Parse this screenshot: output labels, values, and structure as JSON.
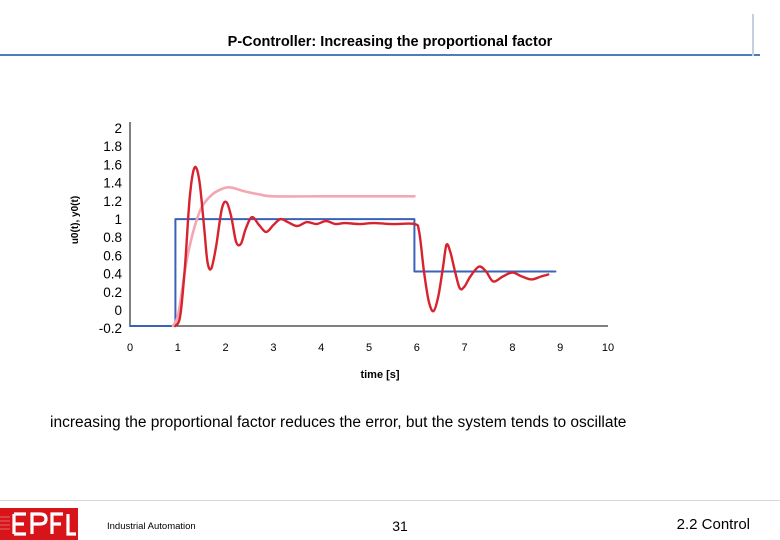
{
  "slide": {
    "title": "P-Controller: Increasing the proportional factor",
    "caption": "increasing the proportional factor reduces the error, but the system tends to oscillate",
    "footer": {
      "course": "Industrial Automation",
      "page": "31",
      "section": "2.2 Control",
      "logo_text": "EPFL"
    }
  },
  "chart_data": {
    "type": "line",
    "title": "",
    "xlabel": "time [s]",
    "ylabel": "u0(t), y0(t)",
    "xlim": [
      0,
      10
    ],
    "ylim": [
      -0.2,
      2
    ],
    "x_ticks": [
      "0",
      "1",
      "2",
      "3",
      "4",
      "5",
      "6",
      "7",
      "8",
      "9",
      "10"
    ],
    "y_ticks": [
      "2",
      "1.8",
      "1.6",
      "1.4",
      "1.2",
      "1",
      "0.8",
      "0.6",
      "0.4",
      "0.2",
      "0",
      "-0.2"
    ],
    "legend": "none",
    "grid": false,
    "colors": {
      "setpoint": "#3a62b8",
      "response_high_gain": "#d7232d",
      "response_low_gain": "#f2a7b3",
      "axis": "#000000"
    },
    "series": [
      {
        "values": [
          [
            0,
            0
          ],
          [
            0.95,
            0
          ],
          [
            0.95,
            1.08
          ],
          [
            5.95,
            1.08
          ],
          [
            5.95,
            0.55
          ],
          [
            8.9,
            0.55
          ]
        ]
      },
      {
        "values": [
          [
            0.9,
            0
          ],
          [
            1.0,
            0.1
          ],
          [
            1.1,
            0.4
          ],
          [
            1.2,
            0.7
          ],
          [
            1.35,
            1.0
          ],
          [
            1.5,
            1.2
          ],
          [
            1.7,
            1.32
          ],
          [
            1.9,
            1.38
          ],
          [
            2.1,
            1.4
          ],
          [
            2.4,
            1.36
          ],
          [
            2.7,
            1.33
          ],
          [
            3.0,
            1.31
          ],
          [
            4.0,
            1.31
          ],
          [
            5.0,
            1.31
          ],
          [
            5.95,
            1.31
          ]
        ]
      },
      {
        "values": [
          [
            0.95,
            0
          ],
          [
            1.05,
            0.1
          ],
          [
            1.15,
            0.6
          ],
          [
            1.25,
            1.3
          ],
          [
            1.35,
            1.6
          ],
          [
            1.45,
            1.47
          ],
          [
            1.55,
            1.0
          ],
          [
            1.62,
            0.65
          ],
          [
            1.7,
            0.58
          ],
          [
            1.8,
            0.8
          ],
          [
            1.92,
            1.18
          ],
          [
            2.02,
            1.25
          ],
          [
            2.12,
            1.1
          ],
          [
            2.22,
            0.85
          ],
          [
            2.32,
            0.83
          ],
          [
            2.42,
            0.98
          ],
          [
            2.55,
            1.1
          ],
          [
            2.7,
            1.02
          ],
          [
            2.85,
            0.95
          ],
          [
            3.0,
            1.02
          ],
          [
            3.15,
            1.08
          ],
          [
            3.3,
            1.05
          ],
          [
            3.5,
            1.01
          ],
          [
            3.7,
            1.05
          ],
          [
            3.9,
            1.03
          ],
          [
            4.1,
            1.06
          ],
          [
            4.3,
            1.03
          ],
          [
            4.5,
            1.04
          ],
          [
            4.8,
            1.03
          ],
          [
            5.1,
            1.04
          ],
          [
            5.5,
            1.03
          ],
          [
            5.95,
            1.03
          ],
          [
            6.05,
            0.95
          ],
          [
            6.15,
            0.55
          ],
          [
            6.25,
            0.25
          ],
          [
            6.35,
            0.15
          ],
          [
            6.45,
            0.3
          ],
          [
            6.55,
            0.6
          ],
          [
            6.62,
            0.82
          ],
          [
            6.7,
            0.75
          ],
          [
            6.8,
            0.55
          ],
          [
            6.9,
            0.38
          ],
          [
            7.0,
            0.4
          ],
          [
            7.12,
            0.5
          ],
          [
            7.3,
            0.6
          ],
          [
            7.45,
            0.55
          ],
          [
            7.6,
            0.45
          ],
          [
            7.8,
            0.5
          ],
          [
            8.0,
            0.54
          ],
          [
            8.2,
            0.5
          ],
          [
            8.4,
            0.47
          ],
          [
            8.6,
            0.5
          ],
          [
            8.75,
            0.52
          ]
        ]
      }
    ]
  }
}
